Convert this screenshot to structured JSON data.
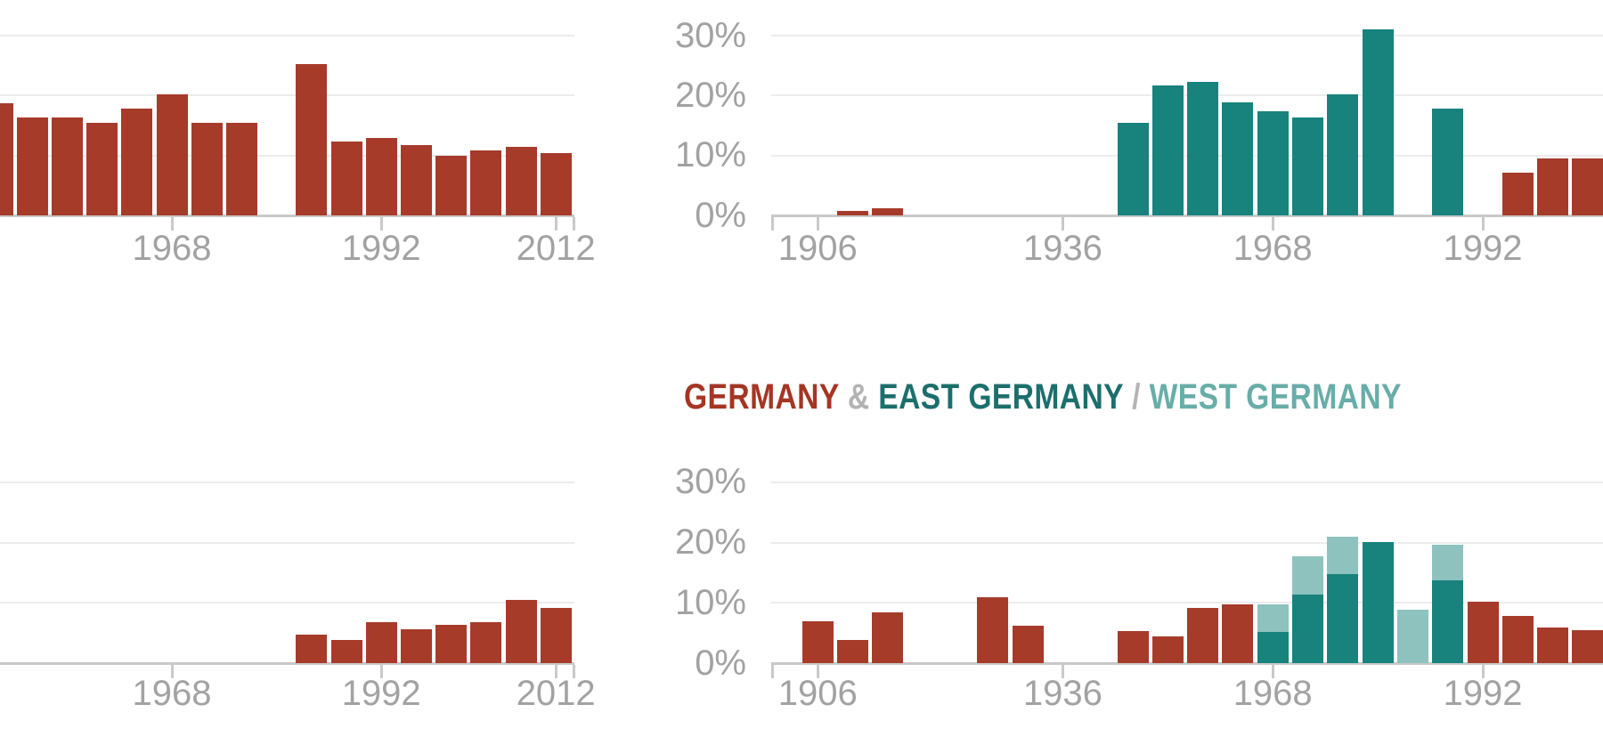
{
  "palette": {
    "red": "#a63b2a",
    "dark_teal": "#18827d",
    "light_teal": "#8ec2be",
    "title_red": "#a53524",
    "title_dark_teal": "#1b6f6c",
    "title_light_teal": "#68ada8",
    "title_gray": "#b3b3b3",
    "axis_text_gray": "#a2a2a2",
    "gridline_gray": "#ececec",
    "axis_line_gray": "#c9c9c9"
  },
  "y_axis": {
    "tick_labels": [
      "30%",
      "20%",
      "10%",
      "0%"
    ],
    "tick_values": [
      30,
      20,
      10,
      0
    ]
  },
  "chart_data": [
    {
      "id": "top-left",
      "type": "bar",
      "row": "top",
      "col": "left",
      "title_visible": false,
      "show_y_labels": false,
      "ylim": [
        0,
        30
      ],
      "x_tick_labels": [
        "1968",
        "1992",
        "2012"
      ],
      "bars": [
        {
          "year": 1948,
          "segments": [
            {
              "color": "red",
              "value": 18.7
            }
          ]
        },
        {
          "year": 1952,
          "segments": [
            {
              "color": "red",
              "value": 16.4
            }
          ]
        },
        {
          "year": 1956,
          "segments": [
            {
              "color": "red",
              "value": 16.4
            }
          ]
        },
        {
          "year": 1960,
          "segments": [
            {
              "color": "red",
              "value": 15.4
            }
          ]
        },
        {
          "year": 1964,
          "segments": [
            {
              "color": "red",
              "value": 17.9
            }
          ]
        },
        {
          "year": 1968,
          "segments": [
            {
              "color": "red",
              "value": 20.2
            }
          ]
        },
        {
          "year": 1972,
          "segments": [
            {
              "color": "red",
              "value": 15.4
            }
          ]
        },
        {
          "year": 1976,
          "segments": [
            {
              "color": "red",
              "value": 15.4
            }
          ]
        },
        {
          "year": 1984,
          "segments": [
            {
              "color": "red",
              "value": 25.2
            }
          ]
        },
        {
          "year": 1988,
          "segments": [
            {
              "color": "red",
              "value": 12.4
            }
          ]
        },
        {
          "year": 1992,
          "segments": [
            {
              "color": "red",
              "value": 12.9
            }
          ]
        },
        {
          "year": 1996,
          "segments": [
            {
              "color": "red",
              "value": 11.8
            }
          ]
        },
        {
          "year": 2000,
          "segments": [
            {
              "color": "red",
              "value": 10.0
            }
          ]
        },
        {
          "year": 2004,
          "segments": [
            {
              "color": "red",
              "value": 10.9
            }
          ]
        },
        {
          "year": 2008,
          "segments": [
            {
              "color": "red",
              "value": 11.4
            }
          ]
        },
        {
          "year": 2012,
          "segments": [
            {
              "color": "red",
              "value": 10.4
            }
          ]
        }
      ]
    },
    {
      "id": "top-right",
      "type": "bar",
      "row": "top",
      "col": "right",
      "title_visible": false,
      "show_y_labels": true,
      "ylim": [
        0,
        30
      ],
      "x_tick_labels": [
        "1906",
        "1936",
        "1968",
        "1992"
      ],
      "bars": [
        {
          "year": 1908,
          "segments": [
            {
              "color": "red",
              "value": 0.8
            }
          ]
        },
        {
          "year": 1912,
          "segments": [
            {
              "color": "red",
              "value": 1.2
            }
          ]
        },
        {
          "year": 1952,
          "segments": [
            {
              "color": "dark_teal",
              "value": 15.5
            }
          ]
        },
        {
          "year": 1956,
          "segments": [
            {
              "color": "dark_teal",
              "value": 21.7
            }
          ]
        },
        {
          "year": 1960,
          "segments": [
            {
              "color": "dark_teal",
              "value": 22.3
            }
          ]
        },
        {
          "year": 1964,
          "segments": [
            {
              "color": "dark_teal",
              "value": 18.8
            }
          ]
        },
        {
          "year": 1968,
          "segments": [
            {
              "color": "dark_teal",
              "value": 17.4
            }
          ]
        },
        {
          "year": 1972,
          "segments": [
            {
              "color": "dark_teal",
              "value": 16.4
            }
          ]
        },
        {
          "year": 1976,
          "segments": [
            {
              "color": "dark_teal",
              "value": 20.2
            }
          ]
        },
        {
          "year": 1980,
          "segments": [
            {
              "color": "dark_teal",
              "value": 31.0
            }
          ]
        },
        {
          "year": 1988,
          "segments": [
            {
              "color": "dark_teal",
              "value": 17.9
            }
          ]
        },
        {
          "year": 1996,
          "segments": [
            {
              "color": "red",
              "value": 7.1
            }
          ]
        },
        {
          "year": 2000,
          "segments": [
            {
              "color": "red",
              "value": 9.5
            }
          ]
        },
        {
          "year": 2004,
          "segments": [
            {
              "color": "red",
              "value": 9.5
            }
          ]
        }
      ]
    },
    {
      "id": "bottom-left",
      "type": "bar",
      "row": "bottom",
      "col": "left",
      "title_visible": false,
      "show_y_labels": false,
      "ylim": [
        0,
        30
      ],
      "x_tick_labels": [
        "1968",
        "1992",
        "2012"
      ],
      "bars": [
        {
          "year": 1984,
          "segments": [
            {
              "color": "red",
              "value": 4.7
            }
          ]
        },
        {
          "year": 1988,
          "segments": [
            {
              "color": "red",
              "value": 3.8
            }
          ]
        },
        {
          "year": 1992,
          "segments": [
            {
              "color": "red",
              "value": 6.8
            }
          ]
        },
        {
          "year": 1996,
          "segments": [
            {
              "color": "red",
              "value": 5.6
            }
          ]
        },
        {
          "year": 2000,
          "segments": [
            {
              "color": "red",
              "value": 6.3
            }
          ]
        },
        {
          "year": 2004,
          "segments": [
            {
              "color": "red",
              "value": 6.8
            }
          ]
        },
        {
          "year": 2008,
          "segments": [
            {
              "color": "red",
              "value": 10.5
            }
          ]
        },
        {
          "year": 2012,
          "segments": [
            {
              "color": "red",
              "value": 9.1
            }
          ]
        }
      ]
    },
    {
      "id": "bottom-right",
      "type": "bar",
      "row": "bottom",
      "col": "right",
      "title_visible": true,
      "title_segments": [
        {
          "text": "GERMANY",
          "color_key": "title_red"
        },
        {
          "text": " & ",
          "color_key": "title_gray"
        },
        {
          "text": "EAST GERMANY",
          "color_key": "title_dark_teal"
        },
        {
          "text": " / ",
          "color_key": "title_gray"
        },
        {
          "text": "WEST GERMANY",
          "color_key": "title_light_teal"
        }
      ],
      "show_y_labels": true,
      "ylim": [
        0,
        30
      ],
      "x_tick_labels": [
        "1906",
        "1936",
        "1968",
        "1992"
      ],
      "bars": [
        {
          "year": 1906,
          "segments": [
            {
              "color": "red",
              "value": 6.9
            }
          ]
        },
        {
          "year": 1908,
          "segments": [
            {
              "color": "red",
              "value": 3.9
            }
          ]
        },
        {
          "year": 1912,
          "segments": [
            {
              "color": "red",
              "value": 8.4
            }
          ]
        },
        {
          "year": 1928,
          "segments": [
            {
              "color": "red",
              "value": 11.0
            }
          ]
        },
        {
          "year": 1932,
          "segments": [
            {
              "color": "red",
              "value": 6.2
            }
          ]
        },
        {
          "year": 1952,
          "segments": [
            {
              "color": "red",
              "value": 5.3
            }
          ]
        },
        {
          "year": 1956,
          "segments": [
            {
              "color": "red",
              "value": 4.5
            }
          ]
        },
        {
          "year": 1960,
          "segments": [
            {
              "color": "red",
              "value": 9.2
            }
          ]
        },
        {
          "year": 1964,
          "segments": [
            {
              "color": "red",
              "value": 9.7
            }
          ]
        },
        {
          "year": 1968,
          "segments": [
            {
              "color": "dark_teal",
              "value": 5.2
            },
            {
              "color": "light_teal",
              "value": 4.6
            }
          ]
        },
        {
          "year": 1972,
          "segments": [
            {
              "color": "dark_teal",
              "value": 11.3
            },
            {
              "color": "light_teal",
              "value": 6.4
            }
          ]
        },
        {
          "year": 1976,
          "segments": [
            {
              "color": "dark_teal",
              "value": 14.8
            },
            {
              "color": "light_teal",
              "value": 6.2
            }
          ]
        },
        {
          "year": 1980,
          "segments": [
            {
              "color": "dark_teal",
              "value": 20.1
            }
          ]
        },
        {
          "year": 1984,
          "segments": [
            {
              "color": "light_teal",
              "value": 8.9
            }
          ]
        },
        {
          "year": 1988,
          "segments": [
            {
              "color": "dark_teal",
              "value": 13.8
            },
            {
              "color": "light_teal",
              "value": 5.9
            }
          ]
        },
        {
          "year": 1992,
          "segments": [
            {
              "color": "red",
              "value": 10.2
            }
          ]
        },
        {
          "year": 1996,
          "segments": [
            {
              "color": "red",
              "value": 7.9
            }
          ]
        },
        {
          "year": 2000,
          "segments": [
            {
              "color": "red",
              "value": 5.9
            }
          ]
        },
        {
          "year": 2004,
          "segments": [
            {
              "color": "red",
              "value": 5.4
            }
          ]
        }
      ]
    }
  ]
}
